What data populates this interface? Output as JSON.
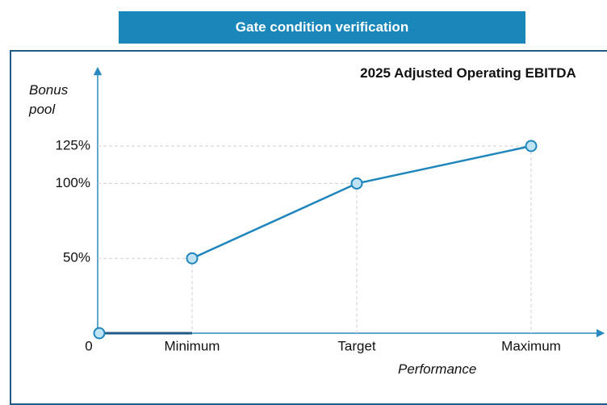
{
  "header": {
    "title": "Gate condition verification"
  },
  "chart_data": {
    "type": "line",
    "title": "2025 Adjusted Operating EBITDA",
    "y_label": "Bonus pool",
    "x_label": "Performance",
    "categories": [
      "0",
      "Minimum",
      "Target",
      "Maximum"
    ],
    "values": [
      0,
      50,
      100,
      125
    ],
    "color": "#1f86bd",
    "marker_fill": "#bfe3f3",
    "ylim": [
      0,
      125
    ],
    "yticks": [
      {
        "value": 50,
        "label": "50%"
      },
      {
        "value": 100,
        "label": "100%"
      },
      {
        "value": 125,
        "label": "125%"
      }
    ],
    "grid": true
  }
}
